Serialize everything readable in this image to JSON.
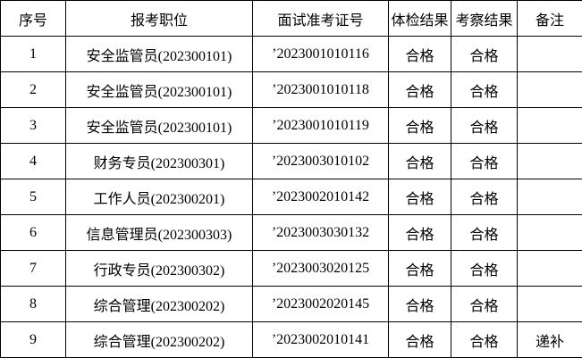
{
  "colors": {
    "border": "#000000",
    "background": "#ffffff",
    "text": "#000000"
  },
  "table": {
    "headers": {
      "index": "序号",
      "position": "报考职位",
      "ticket": "面试准考证号",
      "physical": "体检结果",
      "inspection": "考察结果",
      "remarks": "备注"
    },
    "rows": [
      [
        "1",
        "安全监管员(202300101)",
        "’2023001010116",
        "合格",
        "合格",
        ""
      ],
      [
        "2",
        "安全监管员(202300101)",
        "’2023001010118",
        "合格",
        "合格",
        ""
      ],
      [
        "3",
        "安全监管员(202300101)",
        "’2023001010119",
        "合格",
        "合格",
        ""
      ],
      [
        "4",
        "财务专员(202300301)",
        "’2023003010102",
        "合格",
        "合格",
        ""
      ],
      [
        "5",
        "工作人员(202300201)",
        "’2023002010142",
        "合格",
        "合格",
        ""
      ],
      [
        "6",
        "信息管理员(202300303)",
        "’2023003030132",
        "合格",
        "合格",
        ""
      ],
      [
        "7",
        "行政专员(202300302)",
        "’2023003020125",
        "合格",
        "合格",
        ""
      ],
      [
        "8",
        "综合管理(202300202)",
        "’2023002020145",
        "合格",
        "合格",
        ""
      ],
      [
        "9",
        "综合管理(202300202)",
        "’2023002010141",
        "合格",
        "合格",
        "递补"
      ]
    ]
  }
}
